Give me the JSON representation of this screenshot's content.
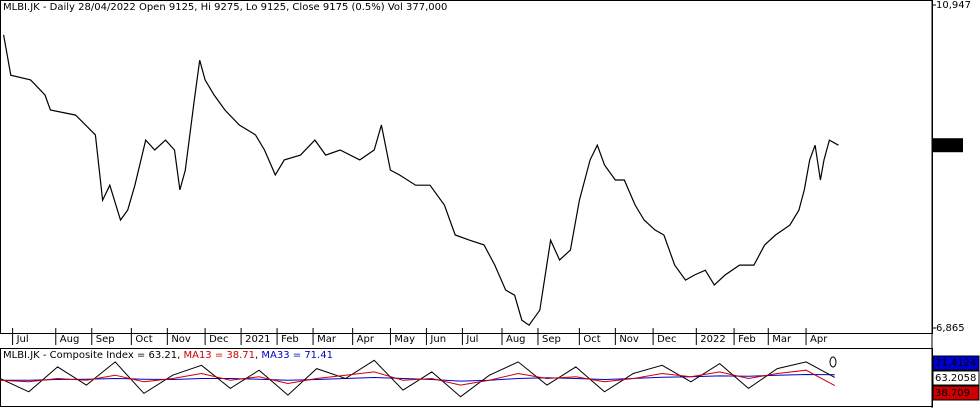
{
  "chart_data": [
    {
      "type": "line",
      "title": "MLBI.JK - Daily 28/04/2022 Open 9125, Hi 9275, Lo 9125, Close 9175 (0.5%) Vol 377,000",
      "color": "#000000",
      "x": [
        2,
        6,
        17,
        25,
        28,
        42,
        53,
        57,
        61,
        67,
        71,
        75,
        81,
        86,
        92,
        97,
        100,
        103,
        108,
        111,
        114,
        119,
        125,
        133,
        142,
        147,
        153,
        158,
        167,
        175,
        181,
        189,
        200,
        208,
        212,
        217,
        222,
        231,
        239,
        247,
        253,
        261,
        269,
        275,
        281,
        286,
        290,
        294,
        300,
        306,
        311,
        317,
        322,
        328,
        332,
        336,
        342,
        347,
        353,
        358,
        364,
        369,
        375,
        381,
        386,
        392,
        397,
        403,
        411,
        419,
        425,
        431,
        439,
        444,
        447,
        450,
        453,
        456,
        458,
        461,
        466
      ],
      "values": [
        10570,
        10060,
        10000,
        9810,
        9620,
        9555,
        9305,
        8480,
        8670,
        8230,
        8355,
        8670,
        9240,
        9115,
        9240,
        9115,
        8610,
        8860,
        9745,
        10250,
        10000,
        9810,
        9620,
        9430,
        9305,
        9115,
        8800,
        8990,
        9050,
        9240,
        9050,
        9115,
        8990,
        9115,
        9430,
        8860,
        8800,
        8670,
        8670,
        8420,
        8040,
        7975,
        7915,
        7660,
        7345,
        7280,
        6965,
        6900,
        7090,
        7975,
        7725,
        7850,
        8480,
        8990,
        9175,
        8925,
        8735,
        8735,
        8420,
        8230,
        8105,
        8040,
        7660,
        7470,
        7535,
        7595,
        7410,
        7535,
        7660,
        7660,
        7915,
        8040,
        8165,
        8355,
        8610,
        8990,
        9175,
        8735,
        8990,
        9240,
        9175
      ],
      "xlim": [
        0,
        518
      ],
      "xticks": [
        {
          "value": 7,
          "label": "Jul"
        },
        {
          "value": 31,
          "label": "Aug"
        },
        {
          "value": 51,
          "label": "Sep"
        },
        {
          "value": 73,
          "label": "Oct"
        },
        {
          "value": 93,
          "label": "Nov"
        },
        {
          "value": 114,
          "label": "Dec"
        },
        {
          "value": 134,
          "label": "2021"
        },
        {
          "value": 154,
          "label": "Feb"
        },
        {
          "value": 174,
          "label": "Mar"
        },
        {
          "value": 196,
          "label": "Apr"
        },
        {
          "value": 217,
          "label": "May"
        },
        {
          "value": 237,
          "label": "Jun"
        },
        {
          "value": 257,
          "label": "Jul"
        },
        {
          "value": 279,
          "label": "Aug"
        },
        {
          "value": 299,
          "label": "Sep"
        },
        {
          "value": 322,
          "label": "Oct"
        },
        {
          "value": 342,
          "label": "Nov"
        },
        {
          "value": 363,
          "label": "Dec"
        },
        {
          "value": 387,
          "label": "2022"
        },
        {
          "value": 408,
          "label": "Feb"
        },
        {
          "value": 427,
          "label": "Mar"
        },
        {
          "value": 448,
          "label": "Apr"
        }
      ],
      "ylim": [
        6865,
        10947
      ],
      "yticks": [
        {
          "value": 10947,
          "label": "10,947"
        },
        {
          "value": 6865,
          "label": "6,865"
        }
      ],
      "last_value": {
        "value": 9175,
        "label": "9,175"
      }
    },
    {
      "type": "line",
      "title": "MLBI.JK - Composite Index = 63.21",
      "legend_separator": ", ",
      "x": [
        0,
        16,
        32,
        48,
        64,
        80,
        96,
        112,
        128,
        144,
        160,
        176,
        192,
        208,
        224,
        240,
        256,
        272,
        288,
        304,
        320,
        336,
        352,
        368,
        384,
        400,
        416,
        432,
        448,
        464
      ],
      "xlim": [
        0,
        518
      ],
      "ylim": [
        -20,
        140
      ],
      "series": [
        {
          "name": "MA33 = 71.41",
          "color": "#0000cc",
          "values": [
            55,
            55,
            57,
            58,
            60,
            58,
            57,
            60,
            60,
            58,
            55,
            57,
            60,
            63,
            60,
            57,
            52,
            55,
            60,
            62,
            60,
            57,
            60,
            64,
            65,
            68,
            67,
            70,
            72,
            71.4124
          ],
          "last_label": "71.4124",
          "label_text_color": "#ffffff"
        },
        {
          "name": "",
          "color": "#000000",
          "values": [
            60,
            20,
            95,
            40,
            110,
            15,
            70,
            100,
            30,
            85,
            10,
            90,
            60,
            115,
            25,
            80,
            5,
            70,
            110,
            40,
            95,
            20,
            75,
            100,
            50,
            105,
            30,
            90,
            110,
            63.2058
          ],
          "last_label": "63.2058",
          "label_text_color": "#000000"
        },
        {
          "name": "MA13 = 38.71",
          "color": "#cc0000",
          "values": [
            55,
            50,
            60,
            55,
            70,
            50,
            60,
            75,
            55,
            65,
            45,
            60,
            70,
            80,
            55,
            60,
            40,
            55,
            75,
            60,
            65,
            50,
            60,
            75,
            65,
            80,
            60,
            75,
            85,
            38.709
          ],
          "last_label": "38.709",
          "label_text_color": "#000000"
        }
      ]
    }
  ]
}
